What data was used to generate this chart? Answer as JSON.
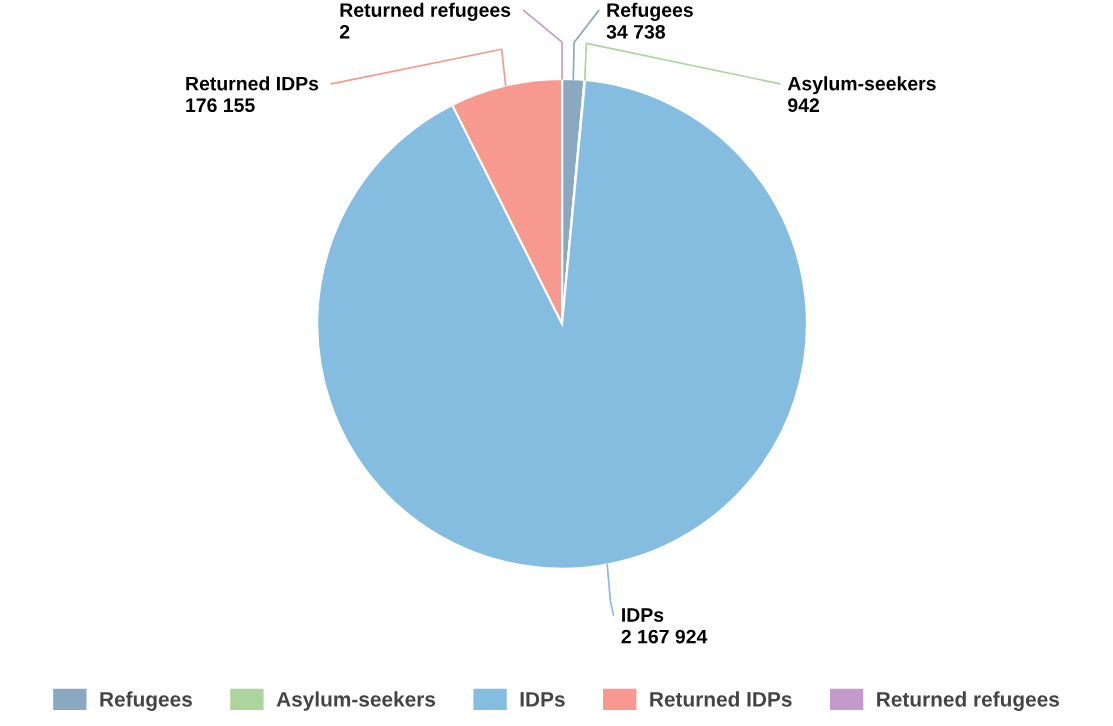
{
  "chart_data": {
    "type": "pie",
    "categories": [
      "Refugees",
      "Asylum-seekers",
      "IDPs",
      "Returned IDPs",
      "Returned refugees"
    ],
    "values": [
      34738,
      942,
      2167924,
      176155,
      2
    ],
    "colors": [
      "#8aa9c1",
      "#acd49c",
      "#85bde0",
      "#f8998f",
      "#c39bcb"
    ],
    "data_labels": true,
    "legend": "bottom"
  }
}
